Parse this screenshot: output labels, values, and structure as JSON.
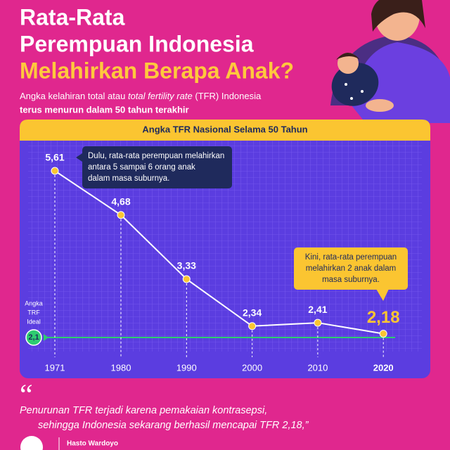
{
  "header": {
    "title_lines": [
      "Rata-Rata",
      "Perempuan Indonesia",
      "Melahirkan Berapa Anak?"
    ],
    "subtitle_parts": [
      "Angka kelahiran total atau ",
      "total fertility rate",
      " (TFR) Indonesia"
    ],
    "subtitle_line2": "terus menurun dalam 50 tahun terakhir"
  },
  "chart_data": {
    "type": "line",
    "title": "Angka TFR Nasional Selama 50 Tahun",
    "categories": [
      "1971",
      "1980",
      "1990",
      "2000",
      "2010",
      "2020"
    ],
    "values": [
      5.61,
      4.68,
      3.33,
      2.34,
      2.41,
      2.18
    ],
    "value_labels": [
      "5,61",
      "4,68",
      "3,33",
      "2,34",
      "2,41",
      "2,18"
    ],
    "color": "#ffffff",
    "reference": {
      "label_lines": [
        "Angka",
        "TRF",
        "Ideal"
      ],
      "value": 2.1,
      "value_label": "2,1",
      "color": "#2ecc71"
    },
    "annotations": [
      {
        "lines": [
          "Dulu, rata-rata perempuan melahirkan",
          "antara 5 sampai 6 orang anak",
          "dalam masa suburnya."
        ]
      },
      {
        "lines": [
          "Kini, rata-rata perempuan",
          "melahirkan 2 anak dalam",
          "masa suburnya."
        ]
      }
    ]
  },
  "quote": {
    "lines": [
      "Penurunan TFR terjadi karena pemakaian kontrasepsi,",
      "sehingga Indonesia sekarang berhasil mencapai TFR 2,18,”"
    ],
    "author": "Hasto Wardoyo"
  }
}
